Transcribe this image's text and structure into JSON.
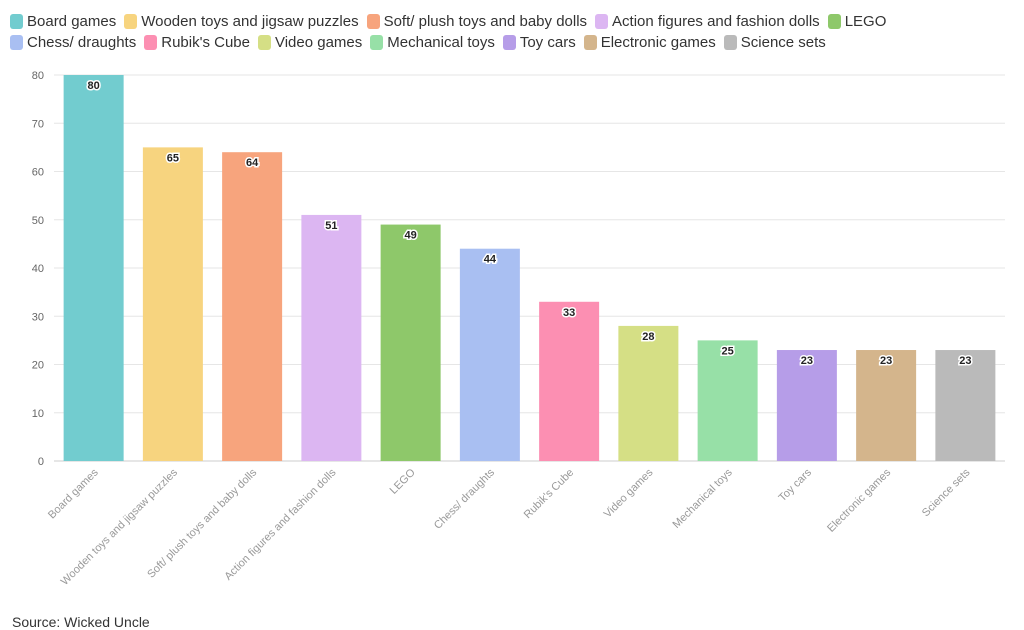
{
  "chart_data": {
    "type": "bar",
    "categories": [
      "Board games",
      "Wooden toys and jigsaw puzzles",
      "Soft/ plush toys and baby dolls",
      "Action figures and fashion dolls",
      "LEGO",
      "Chess/ draughts",
      "Rubik's Cube",
      "Video games",
      "Mechanical toys",
      "Toy cars",
      "Electronic games",
      "Science sets"
    ],
    "values": [
      80,
      65,
      64,
      51,
      49,
      44,
      33,
      28,
      25,
      23,
      23,
      23
    ],
    "colors": [
      "#72cccf",
      "#f7d47f",
      "#f7a47d",
      "#dcb6f2",
      "#8ec86a",
      "#a9bff2",
      "#fc8fb2",
      "#d5df85",
      "#97e0a7",
      "#b69de8",
      "#d4b58c",
      "#bababa"
    ],
    "ylim": [
      0,
      80
    ],
    "yticks": [
      0,
      10,
      20,
      30,
      40,
      50,
      60,
      70,
      80
    ],
    "grid": true,
    "legend_position": "top",
    "data_labels": true
  },
  "source": "Source: Wicked Uncle"
}
